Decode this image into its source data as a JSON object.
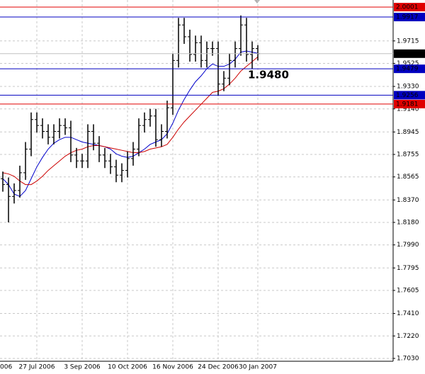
{
  "chart_data": {
    "type": "ohlc",
    "categories": [
      "006",
      null,
      null,
      null,
      null,
      null,
      "27 Jul 2006",
      null,
      null,
      null,
      null,
      null,
      null,
      null,
      "3 Sep 2006",
      null,
      null,
      null,
      null,
      null,
      null,
      null,
      "10 Oct 2006",
      null,
      null,
      null,
      null,
      null,
      null,
      null,
      "16 Nov 2006",
      null,
      null,
      null,
      null,
      null,
      null,
      null,
      "24 Dec 2006",
      null,
      null,
      null,
      null,
      null,
      null,
      "30 Jan 2007"
    ],
    "open": [
      1.855,
      1.85,
      1.84,
      1.845,
      1.86,
      1.88,
      1.905,
      1.9,
      1.895,
      1.89,
      1.895,
      1.9,
      1.898,
      1.875,
      1.87,
      1.87,
      1.895,
      1.885,
      1.875,
      1.87,
      1.865,
      1.858,
      1.862,
      1.872,
      1.88,
      1.9,
      1.905,
      1.908,
      1.888,
      1.895,
      1.915,
      1.955,
      1.985,
      1.975,
      1.96,
      1.97,
      1.955,
      1.965,
      1.965,
      1.935,
      1.94,
      1.955,
      1.965,
      1.985,
      1.96,
      1.965
    ],
    "high": [
      1.861,
      1.856,
      1.851,
      1.866,
      1.886,
      1.911,
      1.911,
      1.906,
      1.901,
      1.901,
      1.906,
      1.906,
      1.904,
      1.881,
      1.876,
      1.901,
      1.901,
      1.891,
      1.881,
      1.876,
      1.871,
      1.868,
      1.878,
      1.886,
      1.906,
      1.911,
      1.914,
      1.914,
      1.901,
      1.921,
      1.961,
      1.991,
      1.991,
      1.981,
      1.976,
      1.976,
      1.971,
      1.971,
      1.971,
      1.946,
      1.961,
      1.971,
      1.993,
      1.991,
      1.971,
      1.968
    ],
    "low": [
      1.844,
      1.818,
      1.834,
      1.839,
      1.854,
      1.874,
      1.894,
      1.889,
      1.884,
      1.884,
      1.889,
      1.892,
      1.869,
      1.864,
      1.864,
      1.864,
      1.879,
      1.869,
      1.864,
      1.859,
      1.852,
      1.852,
      1.856,
      1.866,
      1.874,
      1.894,
      1.899,
      1.882,
      1.882,
      1.889,
      1.909,
      1.949,
      1.969,
      1.954,
      1.954,
      1.949,
      1.949,
      1.959,
      1.925,
      1.929,
      1.934,
      1.949,
      1.959,
      1.954,
      1.948,
      1.955
    ],
    "close": [
      1.85,
      1.84,
      1.845,
      1.86,
      1.88,
      1.905,
      1.9,
      1.895,
      1.89,
      1.895,
      1.9,
      1.898,
      1.875,
      1.87,
      1.87,
      1.895,
      1.885,
      1.875,
      1.87,
      1.865,
      1.858,
      1.862,
      1.872,
      1.88,
      1.9,
      1.905,
      1.908,
      1.888,
      1.895,
      1.915,
      1.955,
      1.985,
      1.975,
      1.96,
      1.97,
      1.955,
      1.965,
      1.965,
      1.935,
      1.94,
      1.955,
      1.965,
      1.985,
      1.96,
      1.965,
      1.9607
    ],
    "color": "#000000",
    "moving_averages": [
      {
        "color": "#0000cc",
        "values": [
          1.855,
          1.85,
          1.842,
          1.84,
          1.845,
          1.855,
          1.865,
          1.873,
          1.88,
          1.885,
          1.888,
          1.89,
          1.89,
          1.888,
          1.886,
          1.885,
          1.884,
          1.883,
          1.882,
          1.88,
          1.876,
          1.874,
          1.873,
          1.874,
          1.877,
          1.88,
          1.884,
          1.886,
          1.888,
          1.893,
          1.902,
          1.913,
          1.922,
          1.93,
          1.937,
          1.942,
          1.948,
          1.952,
          1.95,
          1.95,
          1.952,
          1.956,
          1.962,
          1.963,
          1.962,
          1.961
        ]
      },
      {
        "color": "#cc0000",
        "values": [
          1.86,
          1.859,
          1.857,
          1.853,
          1.85,
          1.85,
          1.853,
          1.857,
          1.862,
          1.866,
          1.87,
          1.874,
          1.877,
          1.879,
          1.88,
          1.882,
          1.883,
          1.883,
          1.882,
          1.881,
          1.88,
          1.879,
          1.878,
          1.877,
          1.877,
          1.878,
          1.88,
          1.881,
          1.882,
          1.884,
          1.89,
          1.897,
          1.903,
          1.908,
          1.913,
          1.918,
          1.923,
          1.928,
          1.929,
          1.931,
          1.935,
          1.94,
          1.946,
          1.95,
          1.954,
          1.958
        ]
      }
    ],
    "levels": [
      {
        "value": 2.0001,
        "color": "#e00000"
      },
      {
        "value": 1.9917,
        "color": "#0000c0"
      },
      {
        "value": 1.9479,
        "color": "#0000c0"
      },
      {
        "value": 1.9256,
        "color": "#0000c0"
      },
      {
        "value": 1.9181,
        "color": "#e00000"
      }
    ],
    "current_price": {
      "value": 1.9607,
      "color": "#000000"
    },
    "annotation": {
      "text": "1.9480",
      "color": "#1e90ff"
    },
    "ylim": [
      1.7006,
      2.0061
    ],
    "yticks": [
      {
        "value": 1.703,
        "label": "1.7030"
      },
      {
        "value": 1.722,
        "label": "1.7220"
      },
      {
        "value": 1.741,
        "label": "1.7410"
      },
      1.7605,
      1.7795,
      {
        "value": 1.799,
        "label": "1.7990"
      },
      {
        "value": 1.818,
        "label": "1.8180"
      },
      {
        "value": 1.837,
        "label": "1.8370"
      },
      1.8565,
      1.8755,
      1.8945,
      {
        "value": 1.914,
        "label": "1.9140"
      },
      {
        "value": 1.933,
        "label": "1.9330"
      },
      1.9525,
      1.9715
    ],
    "grid": true
  }
}
